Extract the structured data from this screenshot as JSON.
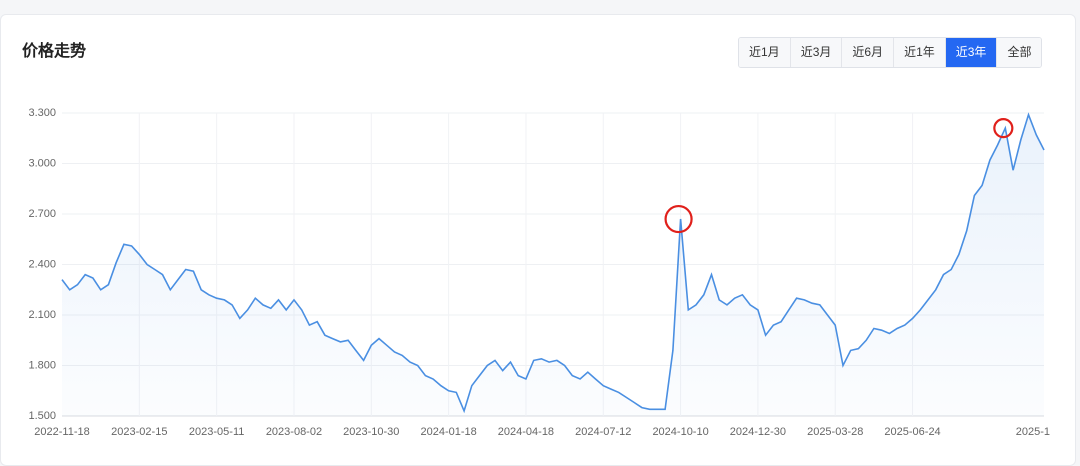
{
  "ui": {
    "range_buttons": [
      "近1月",
      "近3月",
      "近6月",
      "近1年",
      "近3年",
      "全部"
    ],
    "active_range": 4
  },
  "chart_data": {
    "type": "line",
    "title": "价格走势",
    "categories": [
      "2022-11-18",
      null,
      null,
      null,
      null,
      null,
      null,
      null,
      null,
      null,
      "2023-02-15",
      null,
      null,
      null,
      null,
      null,
      null,
      null,
      null,
      null,
      "2023-05-11",
      null,
      null,
      null,
      null,
      null,
      null,
      null,
      null,
      null,
      "2023-08-02",
      null,
      null,
      null,
      null,
      null,
      null,
      null,
      null,
      null,
      "2023-10-30",
      null,
      null,
      null,
      null,
      null,
      null,
      null,
      null,
      null,
      "2024-01-18",
      null,
      null,
      null,
      null,
      null,
      null,
      null,
      null,
      null,
      "2024-04-18",
      null,
      null,
      null,
      null,
      null,
      null,
      null,
      null,
      null,
      "2024-07-12",
      null,
      null,
      null,
      null,
      null,
      null,
      null,
      null,
      null,
      "2024-10-10",
      null,
      null,
      null,
      null,
      null,
      null,
      null,
      null,
      null,
      "2024-12-30",
      null,
      null,
      null,
      null,
      null,
      null,
      null,
      null,
      null,
      "2025-03-28",
      null,
      null,
      null,
      null,
      null,
      null,
      null,
      null,
      null,
      "2025-06-24",
      null,
      null,
      null,
      null,
      null,
      null,
      null,
      null,
      null,
      null,
      null,
      null,
      null,
      null,
      null,
      null,
      "2025-1"
    ],
    "series": [
      {
        "color": "#4a8fe2",
        "values": [
          2.31,
          2.25,
          2.28,
          2.34,
          2.32,
          2.25,
          2.28,
          2.41,
          2.52,
          2.51,
          2.46,
          2.4,
          2.37,
          2.34,
          2.25,
          2.31,
          2.37,
          2.36,
          2.25,
          2.22,
          2.2,
          2.19,
          2.16,
          2.08,
          2.13,
          2.2,
          2.16,
          2.14,
          2.19,
          2.13,
          2.19,
          2.13,
          2.04,
          2.06,
          1.98,
          1.96,
          1.94,
          1.95,
          1.89,
          1.83,
          1.92,
          1.96,
          1.92,
          1.88,
          1.86,
          1.82,
          1.8,
          1.74,
          1.72,
          1.68,
          1.65,
          1.64,
          1.53,
          1.68,
          1.74,
          1.8,
          1.83,
          1.77,
          1.82,
          1.74,
          1.72,
          1.83,
          1.84,
          1.82,
          1.83,
          1.8,
          1.74,
          1.72,
          1.76,
          1.72,
          1.68,
          1.66,
          1.64,
          1.61,
          1.58,
          1.55,
          1.54,
          1.54,
          1.54,
          1.89,
          2.67,
          2.13,
          2.16,
          2.22,
          2.34,
          2.19,
          2.16,
          2.2,
          2.22,
          2.16,
          2.13,
          1.98,
          2.04,
          2.06,
          2.13,
          2.2,
          2.19,
          2.17,
          2.16,
          2.1,
          2.04,
          1.8,
          1.89,
          1.9,
          1.95,
          2.02,
          2.01,
          1.99,
          2.02,
          2.04,
          2.08,
          2.13,
          2.19,
          2.25,
          2.34,
          2.37,
          2.46,
          2.6,
          2.81,
          2.87,
          3.02,
          3.11,
          3.21,
          2.96,
          3.14,
          3.29,
          3.17,
          3.08
        ]
      }
    ],
    "highlight_indices": [
      80,
      122
    ],
    "highlight_color": "#e0201b",
    "ylim": [
      1.5,
      3.3
    ],
    "yticks": [
      {
        "value": 1.5,
        "label": "1.500"
      },
      {
        "value": 1.8,
        "label": "1.800"
      },
      {
        "value": 2.1,
        "label": "2.100"
      },
      {
        "value": 2.4,
        "label": "2.400"
      },
      {
        "value": 2.7,
        "label": "2.700"
      },
      {
        "value": 3.0,
        "label": "3.000"
      },
      {
        "value": 3.3,
        "label": "3.300"
      }
    ],
    "grid": true
  }
}
